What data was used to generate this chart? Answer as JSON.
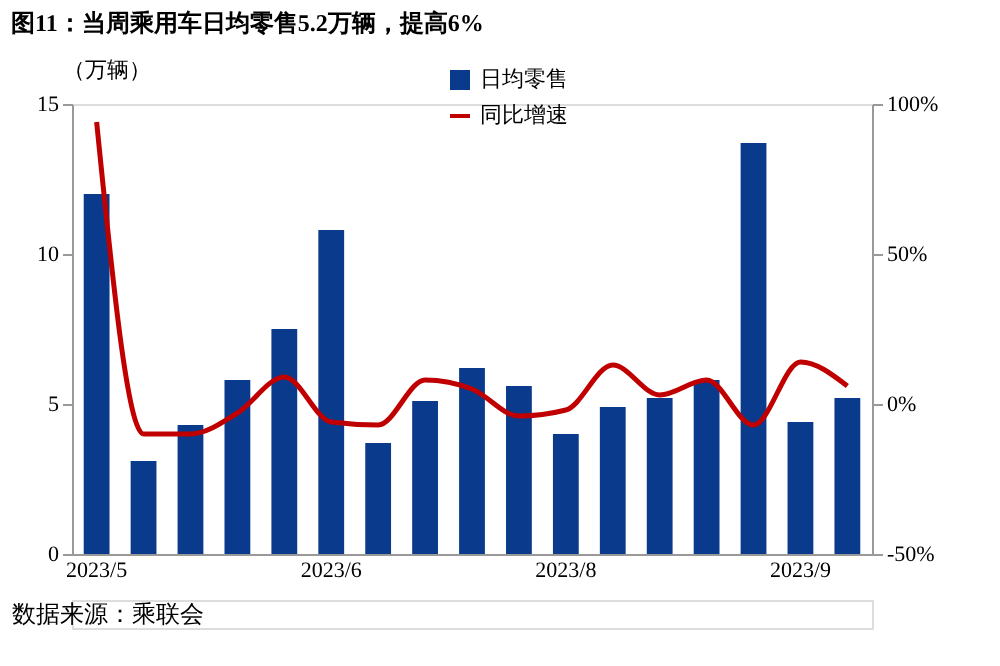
{
  "chart_data": {
    "type": "bar",
    "title": "图11：当周乘用车日均零售5.2万辆，提高6%",
    "ylabel": "（万辆）",
    "categories": [
      "2023/5",
      null,
      null,
      null,
      null,
      "2023/6",
      null,
      null,
      null,
      null,
      "2023/8",
      null,
      null,
      null,
      null,
      "2023/9",
      null
    ],
    "series": [
      {
        "name": "日均零售",
        "color": "#0a3a8c",
        "values": [
          12.0,
          3.1,
          4.3,
          5.8,
          7.5,
          10.8,
          3.7,
          5.1,
          6.2,
          5.6,
          4.0,
          4.9,
          5.2,
          5.8,
          13.7,
          4.4,
          5.2
        ]
      },
      {
        "name": "同比增速",
        "type": "line",
        "axis": "y2",
        "color": "#c00000",
        "values": [
          94,
          -10,
          -10,
          -3,
          9,
          -6,
          -7,
          8,
          5,
          -4,
          -2,
          13,
          3,
          8,
          -7,
          14,
          6
        ]
      }
    ],
    "ylim": [
      0,
      15
    ],
    "yticks": [
      0,
      5,
      10,
      15
    ],
    "y2lim": [
      -50,
      100
    ],
    "y2ticks": [
      {
        "value": -50,
        "label": "-50%"
      },
      {
        "value": 0,
        "label": "0%"
      },
      {
        "value": 50,
        "label": "50%"
      },
      {
        "value": 100,
        "label": "100%"
      }
    ],
    "legend": "top",
    "grid": false,
    "annotations": [
      "数据来源：乘联会"
    ]
  }
}
